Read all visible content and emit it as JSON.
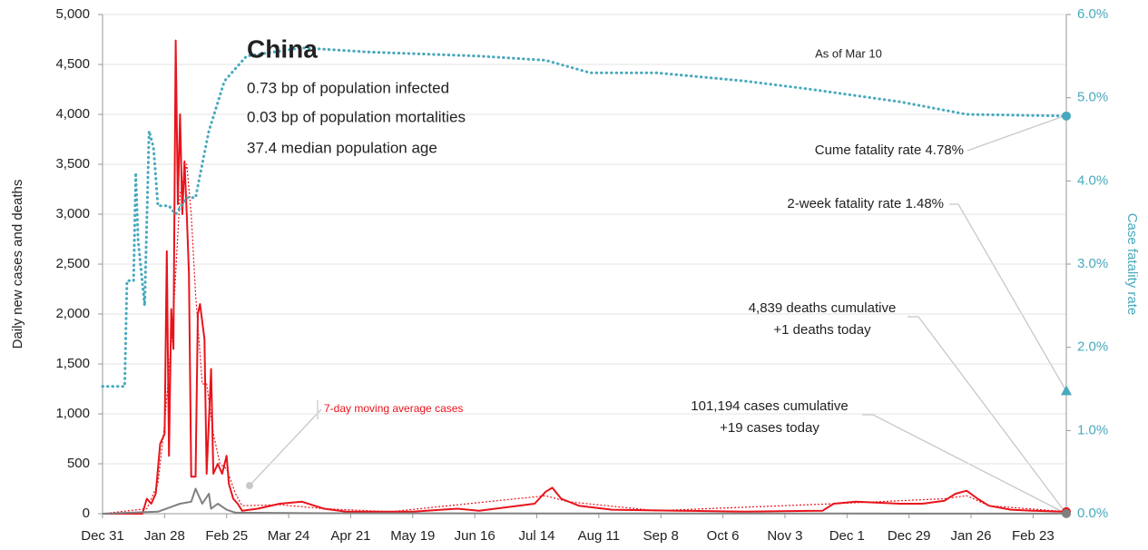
{
  "chart_data": {
    "type": "line",
    "ylabel": "Daily new cases and deaths",
    "y2label": "Case fatality rate",
    "xlim": [
      0,
      435
    ],
    "xticks": [
      {
        "value": 0,
        "label": "Dec 31"
      },
      {
        "value": 28,
        "label": "Jan 28"
      },
      {
        "value": 56,
        "label": "Feb 25"
      },
      {
        "value": 84,
        "label": "Mar 24"
      },
      {
        "value": 112,
        "label": "Apr 21"
      },
      {
        "value": 140,
        "label": "May 19"
      },
      {
        "value": 168,
        "label": "Jun 16"
      },
      {
        "value": 196,
        "label": "Jul 14"
      },
      {
        "value": 224,
        "label": "Aug 11"
      },
      {
        "value": 252,
        "label": "Sep 8"
      },
      {
        "value": 280,
        "label": "Oct 6"
      },
      {
        "value": 308,
        "label": "Nov 3"
      },
      {
        "value": 336,
        "label": "Dec 1"
      },
      {
        "value": 364,
        "label": "Dec 29"
      },
      {
        "value": 392,
        "label": "Jan 26"
      },
      {
        "value": 420,
        "label": "Feb 23"
      }
    ],
    "ylim": [
      0,
      5000
    ],
    "yticks": [
      0,
      500,
      {
        "value": 1000,
        "label": "1,000"
      },
      {
        "value": 1500,
        "label": "1,500"
      },
      {
        "value": 2000,
        "label": "2,000"
      },
      {
        "value": 2500,
        "label": "2,500"
      },
      {
        "value": 3000,
        "label": "3,000"
      },
      {
        "value": 3500,
        "label": "3,500"
      },
      {
        "value": 4000,
        "label": "4,000"
      },
      {
        "value": 4500,
        "label": "4,500"
      },
      {
        "value": 5000,
        "label": "5,000"
      }
    ],
    "y2lim": [
      0,
      6
    ],
    "y2ticks": [
      {
        "value": 0,
        "label": "0.0%"
      },
      {
        "value": 1,
        "label": "1.0%"
      },
      {
        "value": 2,
        "label": "2.0%"
      },
      {
        "value": 3,
        "label": "3.0%"
      },
      {
        "value": 4,
        "label": "4.0%"
      },
      {
        "value": 5,
        "label": "5.0%"
      },
      {
        "value": 6,
        "label": "6.0%"
      }
    ],
    "grid": true,
    "series": [
      {
        "name": "Daily new cases",
        "color": "#e8141c",
        "style": "solid",
        "x": [
          0,
          10,
          18,
          20,
          22,
          24,
          26,
          28,
          29,
          30,
          31,
          32,
          33,
          34,
          35,
          36,
          37,
          38,
          39,
          40,
          42,
          43,
          44,
          46,
          47,
          49,
          50,
          52,
          54,
          56,
          57,
          59,
          61,
          63,
          70,
          80,
          90,
          100,
          110,
          140,
          160,
          170,
          195,
          200,
          203,
          207,
          215,
          230,
          260,
          290,
          325,
          330,
          340,
          360,
          370,
          380,
          385,
          390,
          395,
          400,
          410,
          420,
          435
        ],
        "values": [
          0,
          0,
          0,
          150,
          100,
          200,
          700,
          800,
          2630,
          580,
          2050,
          1650,
          4740,
          3100,
          4000,
          3000,
          3530,
          3000,
          2400,
          370,
          370,
          2000,
          2100,
          1750,
          400,
          1450,
          400,
          500,
          400,
          580,
          300,
          150,
          100,
          30,
          50,
          100,
          120,
          50,
          20,
          20,
          50,
          30,
          100,
          220,
          260,
          150,
          80,
          40,
          30,
          20,
          30,
          100,
          120,
          100,
          100,
          130,
          200,
          230,
          150,
          80,
          40,
          30,
          19
        ]
      },
      {
        "name": "7-day moving average cases",
        "color": "#e8141c",
        "style": "dotted",
        "x": [
          0,
          20,
          25,
          28,
          32,
          35,
          38,
          40,
          42,
          45,
          47,
          50,
          53,
          56,
          60,
          63,
          80,
          100,
          130,
          200,
          210,
          250,
          330,
          380,
          390,
          400,
          435
        ],
        "values": [
          0,
          50,
          300,
          900,
          2000,
          3200,
          3500,
          3000,
          2200,
          1300,
          1300,
          800,
          500,
          450,
          200,
          80,
          90,
          50,
          20,
          180,
          120,
          30,
          100,
          150,
          180,
          80,
          20
        ]
      },
      {
        "name": "Daily new deaths",
        "color": "#808080",
        "style": "solid",
        "x": [
          0,
          25,
          30,
          35,
          40,
          42,
          45,
          48,
          49,
          52,
          56,
          60,
          100,
          200,
          435
        ],
        "values": [
          0,
          20,
          60,
          100,
          120,
          250,
          100,
          200,
          50,
          100,
          40,
          10,
          5,
          3,
          1
        ]
      },
      {
        "name": "Case fatality rate",
        "color": "#48a9bd",
        "style": "dotted-thick",
        "axis": "y2",
        "x": [
          0,
          10,
          11,
          14,
          15,
          16,
          19,
          21,
          23,
          25,
          30,
          33,
          38,
          42,
          48,
          55,
          65,
          90,
          120,
          170,
          200,
          220,
          250,
          290,
          320,
          360,
          390,
          435
        ],
        "values": [
          1.53,
          1.53,
          2.8,
          2.8,
          4.1,
          3.3,
          2.5,
          4.6,
          4.4,
          3.7,
          3.7,
          3.6,
          3.8,
          3.8,
          4.6,
          5.2,
          5.5,
          5.6,
          5.55,
          5.5,
          5.45,
          5.3,
          5.3,
          5.2,
          5.1,
          4.95,
          4.8,
          4.78
        ]
      }
    ],
    "markers": [
      {
        "x": 435,
        "value": 1.48,
        "axis": "y2",
        "color": "#48a9bd"
      }
    ],
    "annotations": [
      "China",
      "0.73 bp of population infected",
      "0.03 bp of population mortalities",
      "37.4 median population age",
      "As of Mar 10",
      "Cume fatality rate 4.78%",
      "2-week fatality rate 1.48%",
      "4,839 deaths cumulative",
      "+1 deaths today",
      "101,194 cases cumulative",
      "+19 cases today",
      "7-day moving average cases"
    ]
  }
}
